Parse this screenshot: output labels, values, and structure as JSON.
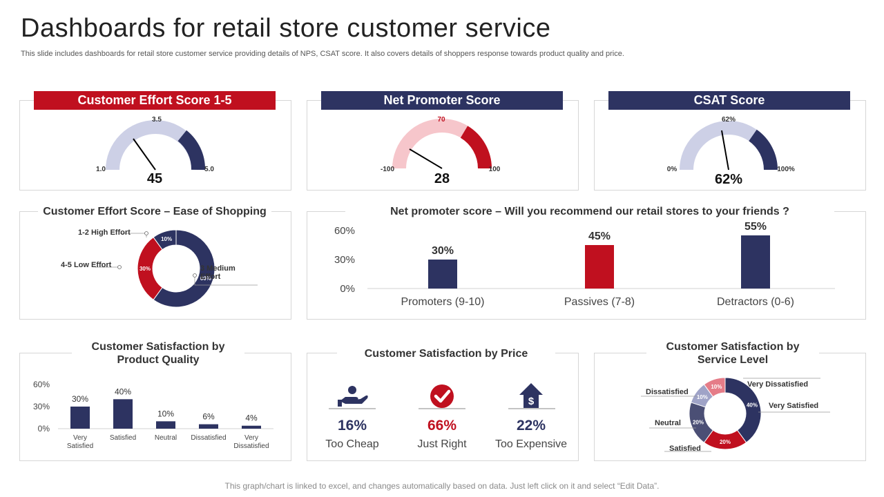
{
  "page": {
    "title": "Dashboards for retail store customer service",
    "subtitle": "This slide includes dashboards for retail store customer service providing details of NPS, CSAT score. It also covers details of shoppers response towards product quality and price.",
    "footer": "This graph/chart is linked to excel, and changes automatically based on data. Just left click on it and select “Edit Data”."
  },
  "colors": {
    "red": "#c0101f",
    "navy": "#2d3361",
    "light_lavender": "#cdd0e6",
    "light_pink": "#f6c6cb",
    "gray_border": "#d6d6d6"
  },
  "gauges": {
    "ces": {
      "header": "Customer Effort Score 1-5",
      "top_label": "3.5",
      "min_label": "1.0",
      "max_label": "5.0",
      "value_label": "45"
    },
    "nps": {
      "header": "Net Promoter Score",
      "top_label": "70",
      "min_label": "-100",
      "max_label": "100",
      "value_label": "28"
    },
    "csat": {
      "header": "CSAT Score",
      "top_label": "62%",
      "min_label": "0%",
      "max_label": "100%",
      "value_label": "62%"
    }
  },
  "ease_panel": {
    "title": "Customer Effort Score – Ease of Shopping",
    "labels": {
      "high": "1-2 High Effort",
      "low": "4-5 Low Effort",
      "medium_line1": "3 Medium",
      "medium_line2": "Effort"
    }
  },
  "recommend_panel": {
    "title": "Net promoter score – Will you recommend our retail stores to your friends ?"
  },
  "quality_panel": {
    "title_line1": "Customer Satisfaction by",
    "title_line2": "Product Quality"
  },
  "price_panel": {
    "title": "Customer Satisfaction by Price",
    "items": [
      {
        "pct": "16%",
        "label": "Too Cheap",
        "icon": "hand-coin-icon"
      },
      {
        "pct": "66%",
        "label": "Just Right",
        "icon": "check-circle-icon"
      },
      {
        "pct": "22%",
        "label": "Too Expensive",
        "icon": "dollar-arrow-up-icon"
      }
    ]
  },
  "service_panel": {
    "title_line1": "Customer Satisfaction by",
    "title_line2": "Service Level",
    "labels": {
      "very_dissatisfied": "Very Dissatisfied",
      "very_satisfied": "Very Satisfied",
      "dissatisfied": "Dissatisfied",
      "neutral": "Neutral",
      "satisfied": "Satisfied"
    }
  },
  "chart_data": [
    {
      "type": "pie",
      "variant": "donut",
      "categories": [
        "3 Medium Effort",
        "4-5 Low Effort",
        "1-2 High Effort"
      ],
      "values": [
        60,
        30,
        10
      ],
      "value_labels": [
        "60%",
        "30%",
        "10%"
      ],
      "colors": [
        "#2d3361",
        "#c0101f",
        "#2d3361"
      ]
    },
    {
      "type": "bar",
      "categories": [
        "Promoters (9-10)",
        "Passives (7-8)",
        "Detractors (0-6)"
      ],
      "values": [
        30,
        45,
        55
      ],
      "value_labels": [
        "30%",
        "45%",
        "55%"
      ],
      "colors": [
        "#2d3361",
        "#c0101f",
        "#2d3361"
      ],
      "yticks": [
        "0%",
        "30%",
        "60%"
      ],
      "ylim": [
        0,
        60
      ]
    },
    {
      "type": "bar",
      "categories": [
        "Very Satisfied",
        "Satisfied",
        "Neutral",
        "Dissatisfied",
        "Very Dissatisfied"
      ],
      "category_lines": [
        [
          "Very",
          "Satisfied"
        ],
        [
          "Satisfied"
        ],
        [
          "Neutral"
        ],
        [
          "Dissatisfied"
        ],
        [
          "Very",
          "Dissatisfied"
        ]
      ],
      "values": [
        30,
        40,
        10,
        6,
        4
      ],
      "value_labels": [
        "30%",
        "40%",
        "10%",
        "6%",
        "4%"
      ],
      "colors": [
        "#2d3361",
        "#2d3361",
        "#2d3361",
        "#2d3361",
        "#2d3361"
      ],
      "yticks": [
        "0%",
        "30%",
        "60%"
      ],
      "ylim": [
        0,
        60
      ]
    },
    {
      "type": "pie",
      "variant": "donut",
      "categories": [
        "Very Satisfied",
        "Satisfied",
        "Neutral",
        "Dissatisfied",
        "Very Dissatisfied"
      ],
      "values": [
        40,
        20,
        20,
        10,
        10
      ],
      "value_labels": [
        "40%",
        "20%",
        "20%",
        "10%",
        "10%"
      ],
      "colors": [
        "#2d3361",
        "#c0101f",
        "#4b4f75",
        "#9fa3c7",
        "#e57c88"
      ]
    }
  ]
}
